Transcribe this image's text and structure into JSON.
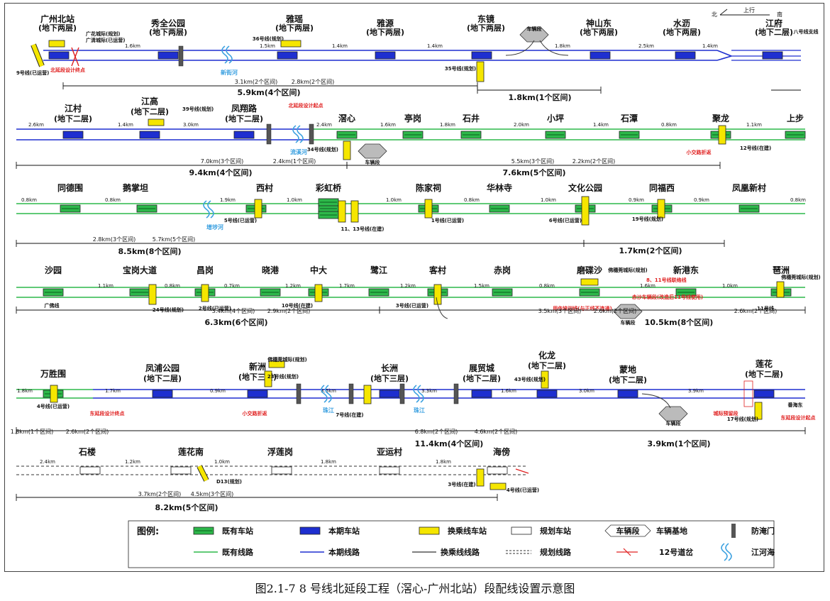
{
  "orientation": {
    "north": "北",
    "direction": "上行",
    "south": "南"
  },
  "rows": [
    {
      "stations": [
        {
          "name": "广州北站",
          "sub": "(地下两层)"
        },
        {
          "name": "秀全公园",
          "sub": "(地下两层)"
        },
        {
          "name": "雅瑶",
          "sub": "(地下两层)"
        },
        {
          "name": "雅源",
          "sub": "(地下两层)"
        },
        {
          "name": "东镜",
          "sub": "(地下两层)"
        },
        {
          "name": "神山东",
          "sub": "(地下两层)"
        },
        {
          "name": "水沥",
          "sub": "(地下两层)"
        },
        {
          "name": "江府",
          "sub": "(地下二层)"
        }
      ],
      "distances": [
        "1.6km",
        "1.5km",
        "1.4km",
        "1.4km",
        "1.8km",
        "2.5km",
        "1.4km"
      ],
      "notes": [
        "广花城际(规划)",
        "广清城际(已运营)",
        "9号线(已运营)",
        "36号线(规划)",
        "35号线(规划)",
        "车辆段",
        "八号线支线"
      ],
      "red_notes": [
        "北延段设计终点"
      ],
      "rivers": [
        "新街河"
      ],
      "dims_small": [
        "3.1km(2个区间)",
        "2.8km(2个区间)"
      ],
      "dims_big": [
        "5.9km(4个区间)",
        "1.8km(1个区间)"
      ]
    },
    {
      "stations": [
        {
          "name": "江村",
          "sub": "(地下二层)"
        },
        {
          "name": "江高",
          "sub": "(地下二层)"
        },
        {
          "name": "凤翔路",
          "sub": "(地下二层)"
        },
        {
          "name": "滘心",
          "sub": ""
        },
        {
          "name": "亭岗",
          "sub": ""
        },
        {
          "name": "石井",
          "sub": ""
        },
        {
          "name": "小坪",
          "sub": ""
        },
        {
          "name": "石潭",
          "sub": ""
        },
        {
          "name": "聚龙",
          "sub": ""
        },
        {
          "name": "上步",
          "sub": ""
        }
      ],
      "distances": [
        "2.6km",
        "1.4km",
        "3.0km",
        "2.4km",
        "1.6km",
        "1.8km",
        "2.0km",
        "1.4km",
        "0.8km",
        "1.1km"
      ],
      "notes": [
        "39号线(规划)",
        "34号线(规划)",
        "车辆段",
        "12号线(在建)"
      ],
      "red_notes": [
        "北延段设计起点",
        "小交路折返"
      ],
      "rivers": [
        "流溪河"
      ],
      "dims_small": [
        "7.0km(3个区间)",
        "2.4km(1个区间)",
        "5.5km(3个区间)",
        "2.2km(2个区间)"
      ],
      "dims_big": [
        "9.4km(4个区间)",
        "7.6km(5个区间)"
      ]
    },
    {
      "stations": [
        {
          "name": "同德围",
          "sub": ""
        },
        {
          "name": "鹅掌坦",
          "sub": ""
        },
        {
          "name": "西村",
          "sub": ""
        },
        {
          "name": "彩虹桥",
          "sub": ""
        },
        {
          "name": "陈家祠",
          "sub": ""
        },
        {
          "name": "华林寺",
          "sub": ""
        },
        {
          "name": "文化公园",
          "sub": ""
        },
        {
          "name": "同福西",
          "sub": ""
        },
        {
          "name": "凤凰新村",
          "sub": ""
        }
      ],
      "distances": [
        "0.8km",
        "0.8km",
        "1.9km",
        "1.0km",
        "1.0km",
        "0.8km",
        "1.0km",
        "0.9km",
        "0.9km",
        "0.8km"
      ],
      "notes": [
        "5号线(已运营)",
        "11、13号线(在建)",
        "1号线(已运营)",
        "6号线(已运营)",
        "19号线(规划)"
      ],
      "red_notes": [],
      "rivers": [
        "增埗河"
      ],
      "dims_small": [
        "2.8km(3个区间)",
        "5.7km(5个区间)"
      ],
      "dims_big": [
        "8.5km(8个区间)",
        "1.7km(2个区间)"
      ]
    },
    {
      "stations": [
        {
          "name": "沙园",
          "sub": ""
        },
        {
          "name": "宝岗大道",
          "sub": ""
        },
        {
          "name": "昌岗",
          "sub": ""
        },
        {
          "name": "晓港",
          "sub": ""
        },
        {
          "name": "中大",
          "sub": ""
        },
        {
          "name": "鹭江",
          "sub": ""
        },
        {
          "name": "客村",
          "sub": ""
        },
        {
          "name": "赤岗",
          "sub": ""
        },
        {
          "name": "磨碟沙",
          "sub": ""
        },
        {
          "name": "新港东",
          "sub": ""
        },
        {
          "name": "琶洲",
          "sub": ""
        }
      ],
      "distances": [
        "1.1km",
        "0.8km",
        "0.7km",
        "1.2km",
        "1.7km",
        "1.2km",
        "1.5km",
        "0.8km",
        "1.6km",
        "1.0km"
      ],
      "notes": [
        "广佛线",
        "24号线(规划)",
        "2号线(已运营)",
        "10号线(在建)",
        "3号线(已运营)",
        "佛穗莞城际(规划)",
        "车辆段",
        "佛穗莞城际(规划)",
        "11号线"
      ],
      "red_notes": [
        "8、11号线联络线",
        "用作培训线(与正线不连通)",
        "赤沙车辆段(改造后11号线使用)"
      ],
      "rivers": [],
      "dims_small": [
        "3.4km(4个区间)",
        "2.9km(2个区间)",
        "3.5km(3个区间)",
        "2.6km(2个区间)",
        "2.6km(2个区间)"
      ],
      "dims_big": [
        "6.3km(6个区间)",
        "10.5km(8个区间)"
      ]
    },
    {
      "stations": [
        {
          "name": "万胜围",
          "sub": ""
        },
        {
          "name": "凤浦公园",
          "sub": "(地下二层)"
        },
        {
          "name": "新洲",
          "sub": "(地下三层)"
        },
        {
          "name": "长洲",
          "sub": "(地下三层)"
        },
        {
          "name": "展贸城",
          "sub": "(地下二层)"
        },
        {
          "name": "化龙",
          "sub": "(地下二层)"
        },
        {
          "name": "蒙地",
          "sub": "(地下二层)"
        },
        {
          "name": "莲花",
          "sub": "(地下二层)"
        }
      ],
      "distances": [
        "1.8km",
        "1.7km",
        "0.9km",
        "3.5km",
        "3.3km",
        "1.6km",
        "3.0km",
        "3.9km"
      ],
      "notes": [
        "4号线(已运营)",
        "佛穗莞城际(规划)",
        "23号线(规划)",
        "7号线(在建)",
        "43号线(规划)",
        "车辆段",
        "17号线(规划)",
        "番海东",
        "城际预留段"
      ],
      "red_notes": [
        "东延段设计终点",
        "小交路折返",
        "东延段设计起点"
      ],
      "rivers": [
        "珠江",
        "珠江"
      ],
      "dims_small": [
        "1.8km(1个区间)",
        "2.6km(2个区间)",
        "6.8km(2个区间)",
        "4.6km(2个区间)"
      ],
      "dims_big": [
        "11.4km(4个区间)",
        "3.9km(1个区间)"
      ]
    },
    {
      "stations": [
        {
          "name": "石楼",
          "sub": ""
        },
        {
          "name": "莲花南",
          "sub": ""
        },
        {
          "name": "浮莲岗",
          "sub": ""
        },
        {
          "name": "亚运村",
          "sub": ""
        },
        {
          "name": "海傍",
          "sub": ""
        }
      ],
      "distances": [
        "2.4km",
        "1.2km",
        "1.0km",
        "1.8km",
        "1.8km"
      ],
      "notes": [
        "D13(规划)",
        "3号线(在建)",
        "4号线(已运营)"
      ],
      "red_notes": [],
      "rivers": [],
      "dims_small": [
        "3.7km(2个区间)",
        "4.5km(3个区间)"
      ],
      "dims_big": [
        "8.2km(5个区间)"
      ]
    }
  ],
  "legend": {
    "title": "图例:",
    "items": [
      {
        "label": "既有车站"
      },
      {
        "label": "本期车站"
      },
      {
        "label": "换乘线车站"
      },
      {
        "label": "规划车站"
      },
      {
        "label": "车辆段",
        "text": "车辆基地"
      },
      {
        "label": "防淹门"
      },
      {
        "label": "既有线路"
      },
      {
        "label": "本期线路"
      },
      {
        "label": "换乘线线路"
      },
      {
        "label": "规划线路"
      },
      {
        "label": "12号道岔"
      },
      {
        "label": "江河海"
      }
    ]
  },
  "caption": "图2.1-7    8 号线北延段工程（滘心-广州北站）段配线设置示意图",
  "colors": {
    "existing": "#2db84a",
    "current": "#1e2fd0",
    "transfer": "#f5e600",
    "red": "#e02020",
    "river": "#3aa0e0"
  }
}
